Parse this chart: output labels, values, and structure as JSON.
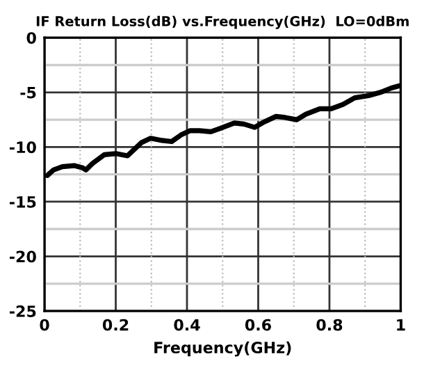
{
  "chart_data": {
    "type": "line",
    "title": "IF Return Loss(dB) vs.Frequency(GHz)  LO=0dBm",
    "xlabel": "Frequency(GHz)",
    "xlim": [
      0,
      1
    ],
    "xticks": [
      0,
      0.2,
      0.4,
      0.6,
      0.8,
      1
    ],
    "ylim": [
      -25,
      0
    ],
    "yticks": [
      -25,
      -20,
      -15,
      -10,
      -5,
      0
    ],
    "grid": true,
    "marker": "none",
    "line_style": "solid",
    "series": [
      {
        "color": "#000000",
        "x": [
          0.008,
          0.025,
          0.05,
          0.083,
          0.107,
          0.116,
          0.135,
          0.168,
          0.2,
          0.233,
          0.246,
          0.272,
          0.298,
          0.33,
          0.357,
          0.383,
          0.409,
          0.435,
          0.467,
          0.493,
          0.533,
          0.56,
          0.59,
          0.617,
          0.65,
          0.676,
          0.708,
          0.734,
          0.773,
          0.805,
          0.838,
          0.871,
          0.91,
          0.943,
          0.974,
          0.997
        ],
        "values": [
          -12.6,
          -12.1,
          -11.8,
          -11.7,
          -11.9,
          -12.1,
          -11.5,
          -10.7,
          -10.6,
          -10.8,
          -10.4,
          -9.6,
          -9.2,
          -9.4,
          -9.5,
          -8.9,
          -8.5,
          -8.5,
          -8.6,
          -8.3,
          -7.8,
          -7.9,
          -8.2,
          -7.7,
          -7.2,
          -7.3,
          -7.5,
          -7.0,
          -6.5,
          -6.5,
          -6.1,
          -5.5,
          -5.3,
          -5.0,
          -4.6,
          -4.4
        ]
      }
    ]
  }
}
